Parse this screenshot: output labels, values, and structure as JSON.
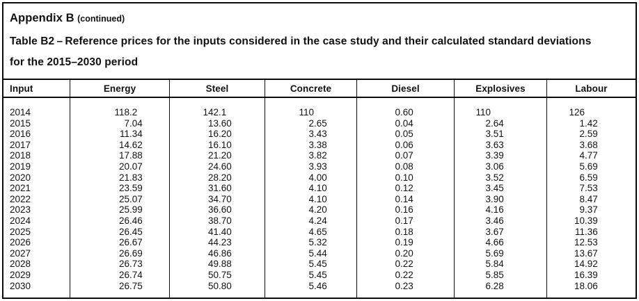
{
  "page": {
    "appendix_title": "Appendix B",
    "appendix_continued": "(continued)",
    "caption_line1": "Table B2 – Reference prices for the inputs considered in the case study and their calculated standard deviations",
    "caption_line2": "for the 2015–2030 period"
  },
  "table": {
    "columns": [
      "Input",
      "Energy",
      "Steel",
      "Concrete",
      "Diesel",
      "Explosives",
      "Labour"
    ],
    "rows": [
      [
        "2014",
        "118.2",
        "142.1",
        "110",
        "0.60",
        "110",
        "126"
      ],
      [
        "2015",
        "7.04",
        "13.60",
        "2.65",
        "0.04",
        "2.64",
        "1.42"
      ],
      [
        "2016",
        "11.34",
        "16.20",
        "3.43",
        "0.05",
        "3.51",
        "2.59"
      ],
      [
        "2017",
        "14.62",
        "16.10",
        "3.38",
        "0.06",
        "3.63",
        "3.68"
      ],
      [
        "2018",
        "17.88",
        "21.20",
        "3.82",
        "0.07",
        "3.39",
        "4.77"
      ],
      [
        "2019",
        "20.07",
        "24.60",
        "3.93",
        "0.08",
        "3.06",
        "5.69"
      ],
      [
        "2020",
        "21.83",
        "28.20",
        "4.00",
        "0.10",
        "3.52",
        "6.59"
      ],
      [
        "2021",
        "23.59",
        "31.60",
        "4.10",
        "0.12",
        "3.45",
        "7.53"
      ],
      [
        "2022",
        "25.07",
        "34.70",
        "4.10",
        "0.14",
        "3.90",
        "8.47"
      ],
      [
        "2023",
        "25.99",
        "36.60",
        "4.20",
        "0.16",
        "4.16",
        "9.37"
      ],
      [
        "2024",
        "26.46",
        "38.70",
        "4.24",
        "0.17",
        "3.46",
        "10.39"
      ],
      [
        "2025",
        "26.45",
        "41.40",
        "4.65",
        "0.18",
        "3.67",
        "11.36"
      ],
      [
        "2026",
        "26.67",
        "44.23",
        "5.32",
        "0.19",
        "4.66",
        "12.53"
      ],
      [
        "2027",
        "26.69",
        "46.86",
        "5.44",
        "0.20",
        "5.69",
        "13.67"
      ],
      [
        "2028",
        "26.73",
        "49.88",
        "5.45",
        "0.22",
        "5.84",
        "14.92"
      ],
      [
        "2029",
        "26.74",
        "50.75",
        "5.45",
        "0.22",
        "5.85",
        "16.39"
      ],
      [
        "2030",
        "26.75",
        "50.80",
        "5.46",
        "0.23",
        "6.28",
        "18.06"
      ]
    ]
  }
}
